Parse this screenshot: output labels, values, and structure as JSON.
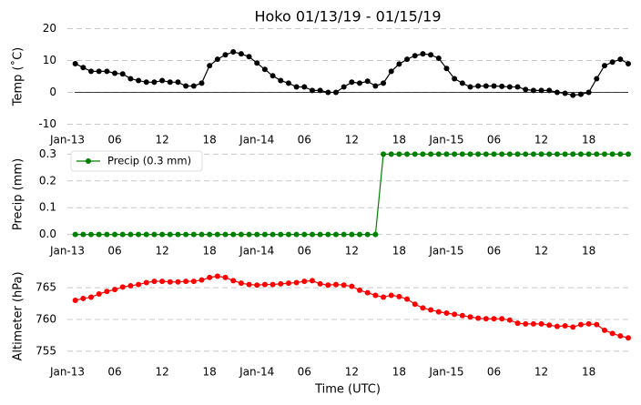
{
  "chart_data": [
    {
      "type": "line",
      "title": "Hoko 01/13/19 - 01/15/19",
      "ylabel": "Temp (˚C)",
      "x": [
        "2019-01-13T01:00",
        "2019-01-13T02:00",
        "2019-01-13T03:00",
        "2019-01-13T04:00",
        "2019-01-13T05:00",
        "2019-01-13T06:00",
        "2019-01-13T07:00",
        "2019-01-13T08:00",
        "2019-01-13T09:00",
        "2019-01-13T10:00",
        "2019-01-13T11:00",
        "2019-01-13T12:00",
        "2019-01-13T13:00",
        "2019-01-13T14:00",
        "2019-01-13T15:00",
        "2019-01-13T16:00",
        "2019-01-13T17:00",
        "2019-01-13T18:00",
        "2019-01-13T19:00",
        "2019-01-13T20:00",
        "2019-01-13T21:00",
        "2019-01-13T22:00",
        "2019-01-13T23:00",
        "2019-01-14T00:00",
        "2019-01-14T01:00",
        "2019-01-14T02:00",
        "2019-01-14T03:00",
        "2019-01-14T04:00",
        "2019-01-14T05:00",
        "2019-01-14T06:00",
        "2019-01-14T07:00",
        "2019-01-14T08:00",
        "2019-01-14T09:00",
        "2019-01-14T10:00",
        "2019-01-14T11:00",
        "2019-01-14T12:00",
        "2019-01-14T13:00",
        "2019-01-14T14:00",
        "2019-01-14T15:00",
        "2019-01-14T16:00",
        "2019-01-14T17:00",
        "2019-01-14T18:00",
        "2019-01-14T19:00",
        "2019-01-14T20:00",
        "2019-01-14T21:00",
        "2019-01-14T22:00",
        "2019-01-14T23:00",
        "2019-01-15T00:00",
        "2019-01-15T01:00",
        "2019-01-15T02:00",
        "2019-01-15T03:00",
        "2019-01-15T04:00",
        "2019-01-15T05:00",
        "2019-01-15T06:00",
        "2019-01-15T07:00",
        "2019-01-15T08:00",
        "2019-01-15T09:00",
        "2019-01-15T10:00",
        "2019-01-15T11:00",
        "2019-01-15T12:00",
        "2019-01-15T13:00",
        "2019-01-15T14:00",
        "2019-01-15T15:00",
        "2019-01-15T16:00",
        "2019-01-15T17:00",
        "2019-01-15T18:00",
        "2019-01-15T19:00",
        "2019-01-15T20:00",
        "2019-01-15T21:00",
        "2019-01-15T22:00",
        "2019-01-15T23:00"
      ],
      "series": [
        {
          "color": "#000000",
          "values": [
            9.0,
            7.8,
            6.6,
            6.6,
            6.6,
            6.0,
            5.8,
            4.3,
            3.7,
            3.2,
            3.2,
            3.7,
            3.2,
            3.2,
            2.0,
            2.0,
            2.9,
            8.4,
            10.4,
            11.8,
            12.7,
            12.1,
            11.2,
            9.2,
            7.2,
            5.2,
            3.7,
            2.9,
            1.7,
            1.7,
            0.6,
            0.6,
            0,
            0,
            1.7,
            3.2,
            2.9,
            3.5,
            2.0,
            2.9,
            6.6,
            8.9,
            10.4,
            11.5,
            12.1,
            11.8,
            10.7,
            7.5,
            4.3,
            2.9,
            1.7,
            2.0,
            2.0,
            2.0,
            1.9,
            1.7,
            1.7,
            0.9,
            0.6,
            0.6,
            0.6,
            0,
            -0.3,
            -0.9,
            -0.6,
            0,
            4.3,
            8.4,
            9.5,
            10.4,
            9.0
          ]
        }
      ],
      "xlim": [
        "2019-01-13T00:00",
        "2019-01-15T23:00"
      ],
      "xticks": [
        {
          "value": "2019-01-13T00:00",
          "label": "Jan-13"
        },
        {
          "value": "2019-01-13T06:00",
          "label": "06"
        },
        {
          "value": "2019-01-13T12:00",
          "label": "12"
        },
        {
          "value": "2019-01-13T18:00",
          "label": "18"
        },
        {
          "value": "2019-01-14T00:00",
          "label": "Jan-14"
        },
        {
          "value": "2019-01-14T06:00",
          "label": "06"
        },
        {
          "value": "2019-01-14T12:00",
          "label": "12"
        },
        {
          "value": "2019-01-14T18:00",
          "label": "18"
        },
        {
          "value": "2019-01-15T00:00",
          "label": "Jan-15"
        },
        {
          "value": "2019-01-15T06:00",
          "label": "06"
        },
        {
          "value": "2019-01-15T12:00",
          "label": "12"
        },
        {
          "value": "2019-01-15T18:00",
          "label": "18"
        }
      ],
      "ylim": [
        -11,
        21
      ],
      "yticks": [
        -10,
        0,
        10,
        20
      ],
      "grid": true,
      "hline": 0
    },
    {
      "type": "line",
      "ylabel": "Precip (mm)",
      "x": [
        "2019-01-13T01:00",
        "2019-01-13T02:00",
        "2019-01-13T03:00",
        "2019-01-13T04:00",
        "2019-01-13T05:00",
        "2019-01-13T06:00",
        "2019-01-13T07:00",
        "2019-01-13T08:00",
        "2019-01-13T09:00",
        "2019-01-13T10:00",
        "2019-01-13T11:00",
        "2019-01-13T12:00",
        "2019-01-13T13:00",
        "2019-01-13T14:00",
        "2019-01-13T15:00",
        "2019-01-13T16:00",
        "2019-01-13T17:00",
        "2019-01-13T18:00",
        "2019-01-13T19:00",
        "2019-01-13T20:00",
        "2019-01-13T21:00",
        "2019-01-13T22:00",
        "2019-01-13T23:00",
        "2019-01-14T00:00",
        "2019-01-14T01:00",
        "2019-01-14T02:00",
        "2019-01-14T03:00",
        "2019-01-14T04:00",
        "2019-01-14T05:00",
        "2019-01-14T06:00",
        "2019-01-14T07:00",
        "2019-01-14T08:00",
        "2019-01-14T09:00",
        "2019-01-14T10:00",
        "2019-01-14T11:00",
        "2019-01-14T12:00",
        "2019-01-14T13:00",
        "2019-01-14T14:00",
        "2019-01-14T15:00",
        "2019-01-14T16:00",
        "2019-01-14T17:00",
        "2019-01-14T18:00",
        "2019-01-14T19:00",
        "2019-01-14T20:00",
        "2019-01-14T21:00",
        "2019-01-14T22:00",
        "2019-01-14T23:00",
        "2019-01-15T00:00",
        "2019-01-15T01:00",
        "2019-01-15T02:00",
        "2019-01-15T03:00",
        "2019-01-15T04:00",
        "2019-01-15T05:00",
        "2019-01-15T06:00",
        "2019-01-15T07:00",
        "2019-01-15T08:00",
        "2019-01-15T09:00",
        "2019-01-15T10:00",
        "2019-01-15T11:00",
        "2019-01-15T12:00",
        "2019-01-15T13:00",
        "2019-01-15T14:00",
        "2019-01-15T15:00",
        "2019-01-15T16:00",
        "2019-01-15T17:00",
        "2019-01-15T18:00",
        "2019-01-15T19:00",
        "2019-01-15T20:00",
        "2019-01-15T21:00",
        "2019-01-15T22:00",
        "2019-01-15T23:00"
      ],
      "series": [
        {
          "name": "Precip (0.3 mm)",
          "color": "#008000",
          "values": [
            0,
            0,
            0,
            0,
            0,
            0,
            0,
            0,
            0,
            0,
            0,
            0,
            0,
            0,
            0,
            0,
            0,
            0,
            0,
            0,
            0,
            0,
            0,
            0,
            0,
            0,
            0,
            0,
            0,
            0,
            0,
            0,
            0,
            0,
            0,
            0,
            0,
            0,
            0,
            0.3,
            0.3,
            0.3,
            0.3,
            0.3,
            0.3,
            0.3,
            0.3,
            0.3,
            0.3,
            0.3,
            0.3,
            0.3,
            0.3,
            0.3,
            0.3,
            0.3,
            0.3,
            0.3,
            0.3,
            0.3,
            0.3,
            0.3,
            0.3,
            0.3,
            0.3,
            0.3,
            0.3,
            0.3,
            0.3,
            0.3,
            0.3
          ]
        }
      ],
      "xlim": [
        "2019-01-13T00:00",
        "2019-01-15T23:00"
      ],
      "xticks": [
        {
          "value": "2019-01-13T00:00",
          "label": "Jan-13"
        },
        {
          "value": "2019-01-13T06:00",
          "label": "06"
        },
        {
          "value": "2019-01-13T12:00",
          "label": "12"
        },
        {
          "value": "2019-01-13T18:00",
          "label": "18"
        },
        {
          "value": "2019-01-14T00:00",
          "label": "Jan-14"
        },
        {
          "value": "2019-01-14T06:00",
          "label": "06"
        },
        {
          "value": "2019-01-14T12:00",
          "label": "12"
        },
        {
          "value": "2019-01-14T18:00",
          "label": "18"
        },
        {
          "value": "2019-01-15T00:00",
          "label": "Jan-15"
        },
        {
          "value": "2019-01-15T06:00",
          "label": "06"
        },
        {
          "value": "2019-01-15T12:00",
          "label": "12"
        },
        {
          "value": "2019-01-15T18:00",
          "label": "18"
        }
      ],
      "ylim": [
        -0.015,
        0.315
      ],
      "yticks": [
        {
          "value": 0,
          "label": "0.0"
        },
        0.1,
        0.2,
        0.3
      ],
      "grid": true,
      "legend": "upper left"
    },
    {
      "type": "line",
      "ylabel": "Altimeter (hPa)",
      "xlabel": "Time (UTC)",
      "x": [
        "2019-01-13T01:00",
        "2019-01-13T02:00",
        "2019-01-13T03:00",
        "2019-01-13T04:00",
        "2019-01-13T05:00",
        "2019-01-13T06:00",
        "2019-01-13T07:00",
        "2019-01-13T08:00",
        "2019-01-13T09:00",
        "2019-01-13T10:00",
        "2019-01-13T11:00",
        "2019-01-13T12:00",
        "2019-01-13T13:00",
        "2019-01-13T14:00",
        "2019-01-13T15:00",
        "2019-01-13T16:00",
        "2019-01-13T17:00",
        "2019-01-13T18:00",
        "2019-01-13T19:00",
        "2019-01-13T20:00",
        "2019-01-13T21:00",
        "2019-01-13T22:00",
        "2019-01-13T23:00",
        "2019-01-14T00:00",
        "2019-01-14T01:00",
        "2019-01-14T02:00",
        "2019-01-14T03:00",
        "2019-01-14T04:00",
        "2019-01-14T05:00",
        "2019-01-14T06:00",
        "2019-01-14T07:00",
        "2019-01-14T08:00",
        "2019-01-14T09:00",
        "2019-01-14T10:00",
        "2019-01-14T11:00",
        "2019-01-14T12:00",
        "2019-01-14T13:00",
        "2019-01-14T14:00",
        "2019-01-14T15:00",
        "2019-01-14T16:00",
        "2019-01-14T17:00",
        "2019-01-14T18:00",
        "2019-01-14T19:00",
        "2019-01-14T20:00",
        "2019-01-14T21:00",
        "2019-01-14T22:00",
        "2019-01-14T23:00",
        "2019-01-15T00:00",
        "2019-01-15T01:00",
        "2019-01-15T02:00",
        "2019-01-15T03:00",
        "2019-01-15T04:00",
        "2019-01-15T05:00",
        "2019-01-15T06:00",
        "2019-01-15T07:00",
        "2019-01-15T08:00",
        "2019-01-15T09:00",
        "2019-01-15T10:00",
        "2019-01-15T11:00",
        "2019-01-15T12:00",
        "2019-01-15T13:00",
        "2019-01-15T14:00",
        "2019-01-15T15:00",
        "2019-01-15T16:00",
        "2019-01-15T17:00",
        "2019-01-15T18:00",
        "2019-01-15T19:00",
        "2019-01-15T20:00",
        "2019-01-15T21:00",
        "2019-01-15T22:00",
        "2019-01-15T23:00"
      ],
      "series": [
        {
          "color": "#ff0000",
          "values": [
            763.0,
            763.3,
            763.5,
            764.0,
            764.4,
            764.7,
            765.1,
            765.3,
            765.5,
            765.8,
            766.0,
            766.0,
            765.9,
            765.9,
            766.0,
            766.0,
            766.2,
            766.6,
            766.8,
            766.6,
            766.1,
            765.7,
            765.5,
            765.4,
            765.5,
            765.5,
            765.6,
            765.7,
            765.8,
            766.0,
            766.1,
            765.6,
            765.4,
            765.5,
            765.4,
            765.2,
            764.6,
            764.2,
            763.8,
            763.5,
            763.8,
            763.6,
            763.2,
            762.4,
            761.8,
            761.5,
            761.2,
            761.0,
            760.8,
            760.6,
            760.4,
            760.2,
            760.1,
            760.1,
            760.1,
            759.9,
            759.4,
            759.3,
            759.3,
            759.3,
            759.1,
            758.9,
            759.0,
            758.8,
            759.2,
            759.3,
            759.2,
            758.3,
            757.8,
            757.4,
            757.1
          ]
        }
      ],
      "xlim": [
        "2019-01-13T00:00",
        "2019-01-15T23:00"
      ],
      "xticks": [
        {
          "value": "2019-01-13T00:00",
          "label": "Jan-13"
        },
        {
          "value": "2019-01-13T06:00",
          "label": "06"
        },
        {
          "value": "2019-01-13T12:00",
          "label": "12"
        },
        {
          "value": "2019-01-13T18:00",
          "label": "18"
        },
        {
          "value": "2019-01-14T00:00",
          "label": "Jan-14"
        },
        {
          "value": "2019-01-14T06:00",
          "label": "06"
        },
        {
          "value": "2019-01-14T12:00",
          "label": "12"
        },
        {
          "value": "2019-01-14T18:00",
          "label": "18"
        },
        {
          "value": "2019-01-15T00:00",
          "label": "Jan-15"
        },
        {
          "value": "2019-01-15T06:00",
          "label": "06"
        },
        {
          "value": "2019-01-15T12:00",
          "label": "12"
        },
        {
          "value": "2019-01-15T18:00",
          "label": "18"
        }
      ],
      "ylim": [
        753.7,
        767.3
      ],
      "yticks": [
        755,
        760,
        765
      ],
      "grid": true
    }
  ]
}
